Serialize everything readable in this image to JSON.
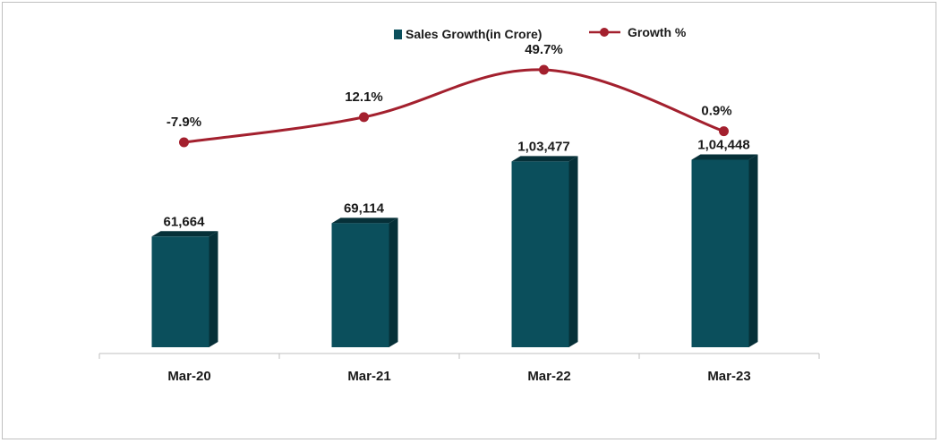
{
  "chart_data": {
    "type": "bar",
    "categories": [
      "Mar-20",
      "Mar-21",
      "Mar-22",
      "Mar-23"
    ],
    "series": [
      {
        "name": "Sales Growth(in Crore)",
        "kind": "bar",
        "values": [
          61664,
          69114,
          103477,
          104448
        ],
        "labels": [
          "61,664",
          "69,114",
          "1,03,477",
          "1,04,448"
        ],
        "color": "#0b4f5c",
        "color_dark": "#063038"
      },
      {
        "name": "Growth %",
        "kind": "line",
        "values": [
          -7.9,
          12.1,
          49.7,
          0.9
        ],
        "labels": [
          "-7.9%",
          "12.1%",
          "49.7%",
          "0.9%"
        ],
        "color": "#a3202e"
      }
    ],
    "legend": "top-center",
    "grid": false
  }
}
